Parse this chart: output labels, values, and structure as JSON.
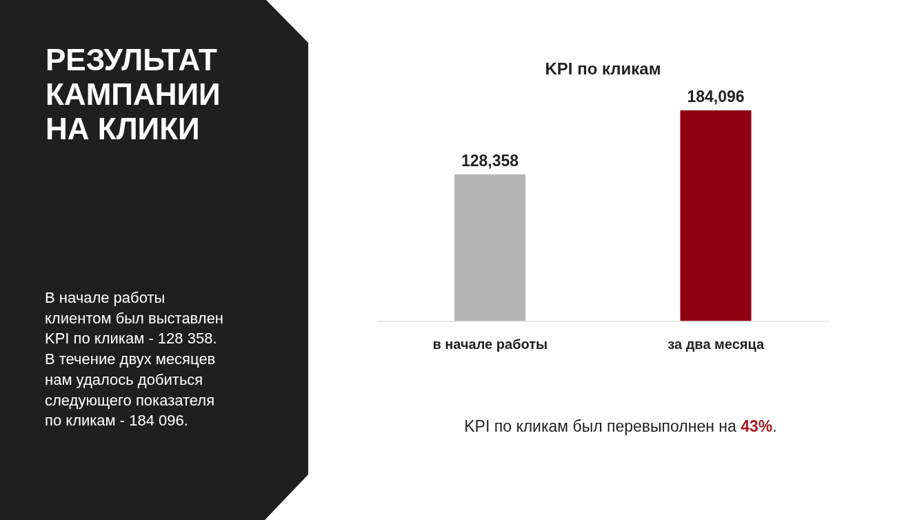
{
  "chart_data": {
    "type": "bar",
    "title": "KPI по кликам",
    "categories": [
      "в начале работы",
      "за два месяца"
    ],
    "values": [
      128358,
      184096
    ],
    "colors": [
      "#b5b5b5",
      "#8e0012"
    ],
    "value_labels": [
      "128,358",
      "184,096"
    ],
    "annotations": [
      "РЕЗУЛЬТАТ КАМПАНИИ НА КЛИКИ",
      "В начале работы клиентом был выставлен KPI по кликам - 128 358. В течение двух месяцев нам удалось добиться следующего показателя по кликам - 184 096.",
      "KPI по кликам был перевыполнен на 43%."
    ]
  }
}
